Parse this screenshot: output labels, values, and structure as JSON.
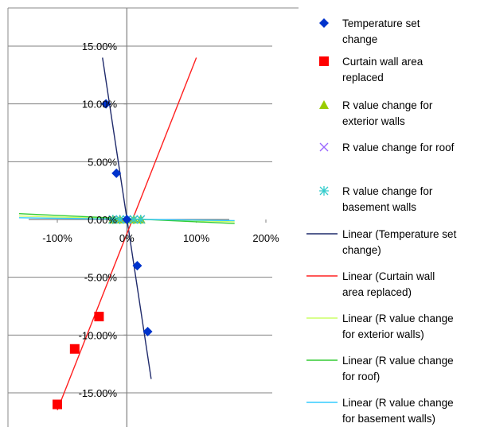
{
  "chart_data": {
    "type": "scatter",
    "x_axis": {
      "min": -150,
      "max": 200,
      "ticks": [
        -100,
        0,
        100,
        200
      ],
      "tick_labels": [
        "-100%",
        "0%",
        "100%",
        "200%"
      ]
    },
    "y_axis": {
      "min": -17,
      "max": 17,
      "ticks": [
        -15,
        -10,
        -5,
        0,
        5,
        10,
        15
      ],
      "tick_labels": [
        "-15.00%",
        "-10.00%",
        "-5.00%",
        "0.00%",
        "5.00%",
        "10.00%",
        "15.00%"
      ]
    },
    "grid": {
      "horizontal": true,
      "vertical": false
    },
    "legend_position": "right",
    "series": [
      {
        "name": "Temperature set change",
        "marker": "diamond",
        "color": "#0033cc",
        "points": [
          [
            -30,
            10
          ],
          [
            -15,
            4
          ],
          [
            0,
            0
          ],
          [
            15,
            -4
          ],
          [
            30,
            -9.7
          ]
        ]
      },
      {
        "name": "Curtain wall area replaced",
        "marker": "square",
        "color": "#ff0000",
        "points": [
          [
            -100,
            -16
          ],
          [
            -75,
            -11.2
          ],
          [
            -40,
            -8.4
          ]
        ]
      },
      {
        "name": "R value change for exterior walls",
        "marker": "triangle",
        "color": "#99cc00",
        "points": [
          [
            -20,
            0
          ],
          [
            -10,
            0
          ],
          [
            0,
            0
          ],
          [
            10,
            0
          ],
          [
            20,
            0
          ]
        ]
      },
      {
        "name": "R value change for roof",
        "marker": "x",
        "color": "#9966ff",
        "points": [
          [
            -20,
            0
          ],
          [
            -10,
            0
          ],
          [
            0,
            0
          ],
          [
            10,
            0
          ],
          [
            20,
            0
          ]
        ]
      },
      {
        "name": "R value change for basement walls",
        "marker": "star",
        "color": "#33cccc",
        "points": [
          [
            -20,
            0
          ],
          [
            -10,
            0
          ],
          [
            0,
            0
          ],
          [
            10,
            0
          ],
          [
            20,
            0
          ]
        ]
      }
    ],
    "trendlines": [
      {
        "name": "Linear (Temperature set change)",
        "color": "#1f2a6b",
        "from": [
          -35,
          14
        ],
        "to": [
          35,
          -13.8
        ]
      },
      {
        "name": "Linear (Curtain wall area replaced)",
        "color": "#ff2020",
        "from": [
          -100,
          -16.5
        ],
        "to": [
          100,
          14
        ]
      },
      {
        "name": "Linear (R value change for exterior walls)",
        "color": "#ccff66",
        "from": [
          -155,
          0.3
        ],
        "to": [
          155,
          -0.2
        ]
      },
      {
        "name": "Linear (R value change for roof)",
        "color": "#33cc33",
        "from": [
          -155,
          0.5
        ],
        "to": [
          155,
          -0.35
        ]
      },
      {
        "name": "Linear (R value change for basement walls)",
        "color": "#33ccff",
        "from": [
          -155,
          0.15
        ],
        "to": [
          155,
          -0.1
        ]
      }
    ],
    "legend": [
      {
        "kind": "marker",
        "marker": "diamond",
        "color": "#0033cc",
        "lines": [
          "Temperature set",
          "change"
        ]
      },
      {
        "kind": "marker",
        "marker": "square",
        "color": "#ff0000",
        "lines": [
          "Curtain wall area",
          "replaced"
        ]
      },
      {
        "kind": "marker",
        "marker": "triangle",
        "color": "#99cc00",
        "lines": [
          "R value change for",
          "exterior walls"
        ]
      },
      {
        "kind": "marker",
        "marker": "x",
        "color": "#9966ff",
        "lines": [
          "R value change for roof"
        ]
      },
      {
        "kind": "marker",
        "marker": "star",
        "color": "#33cccc",
        "lines": [
          "R value change for",
          "basement walls"
        ]
      },
      {
        "kind": "line",
        "color": "#1f2a6b",
        "lines": [
          "Linear (Temperature set",
          "change)"
        ]
      },
      {
        "kind": "line",
        "color": "#ff2020",
        "lines": [
          "Linear (Curtain wall",
          "area replaced)"
        ]
      },
      {
        "kind": "line",
        "color": "#ccff66",
        "lines": [
          "Linear (R value change",
          "for exterior walls)"
        ]
      },
      {
        "kind": "line",
        "color": "#33cc33",
        "lines": [
          "Linear (R value change",
          "for roof)"
        ]
      },
      {
        "kind": "line",
        "color": "#33ccff",
        "lines": [
          "Linear (R value change",
          "for basement walls)"
        ]
      }
    ]
  }
}
